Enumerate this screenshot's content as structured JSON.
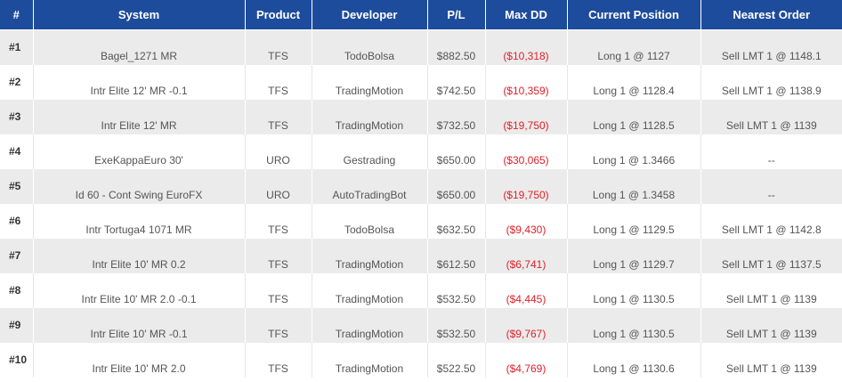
{
  "columns": [
    "#",
    "System",
    "Product",
    "Developer",
    "P/L",
    "Max DD",
    "Current Position",
    "Nearest Order"
  ],
  "rows": [
    {
      "rank": "#1",
      "system": "Bagel_1271 MR",
      "product": "TFS",
      "developer": "TodoBolsa",
      "pl": "$882.50",
      "maxdd": "($10,318)",
      "position": "Long 1 @ 1127",
      "order": "Sell LMT 1 @ 1148.1"
    },
    {
      "rank": "#2",
      "system": "Intr Elite 12' MR -0.1",
      "product": "TFS",
      "developer": "TradingMotion",
      "pl": "$742.50",
      "maxdd": "($10,359)",
      "position": "Long 1 @ 1128.4",
      "order": "Sell LMT 1 @ 1138.9"
    },
    {
      "rank": "#3",
      "system": "Intr Elite 12' MR",
      "product": "TFS",
      "developer": "TradingMotion",
      "pl": "$732.50",
      "maxdd": "($19,750)",
      "position": "Long 1 @ 1128.5",
      "order": "Sell LMT 1 @ 1139"
    },
    {
      "rank": "#4",
      "system": "ExeKappaEuro 30'",
      "product": "URO",
      "developer": "Gestrading",
      "pl": "$650.00",
      "maxdd": "($30,065)",
      "position": "Long 1 @ 1.3466",
      "order": "--"
    },
    {
      "rank": "#5",
      "system": "Id 60 - Cont Swing EuroFX",
      "product": "URO",
      "developer": "AutoTradingBot",
      "pl": "$650.00",
      "maxdd": "($19,750)",
      "position": "Long 1 @ 1.3458",
      "order": "--"
    },
    {
      "rank": "#6",
      "system": "Intr Tortuga4 1071 MR",
      "product": "TFS",
      "developer": "TodoBolsa",
      "pl": "$632.50",
      "maxdd": "($9,430)",
      "position": "Long 1 @ 1129.5",
      "order": "Sell LMT 1 @ 1142.8"
    },
    {
      "rank": "#7",
      "system": "Intr Elite 10' MR 0.2",
      "product": "TFS",
      "developer": "TradingMotion",
      "pl": "$612.50",
      "maxdd": "($6,741)",
      "position": "Long 1 @ 1129.7",
      "order": "Sell LMT 1 @ 1137.5"
    },
    {
      "rank": "#8",
      "system": "Intr Elite 10' MR 2.0 -0.1",
      "product": "TFS",
      "developer": "TradingMotion",
      "pl": "$532.50",
      "maxdd": "($4,445)",
      "position": "Long 1 @ 1130.5",
      "order": "Sell LMT 1 @ 1139"
    },
    {
      "rank": "#9",
      "system": "Intr Elite 10' MR -0.1",
      "product": "TFS",
      "developer": "TradingMotion",
      "pl": "$532.50",
      "maxdd": "($9,767)",
      "position": "Long 1 @ 1130.5",
      "order": "Sell LMT 1 @ 1139"
    },
    {
      "rank": "#10",
      "system": "Intr Elite 10' MR 2.0",
      "product": "TFS",
      "developer": "TradingMotion",
      "pl": "$522.50",
      "maxdd": "($4,769)",
      "position": "Long 1 @ 1130.6",
      "order": "Sell LMT 1 @ 1139"
    }
  ],
  "colors": {
    "header_bg": "#1e4c9c",
    "header_text": "#ffffff",
    "negative": "#e0202a",
    "row_alt": "#ebebeb"
  }
}
